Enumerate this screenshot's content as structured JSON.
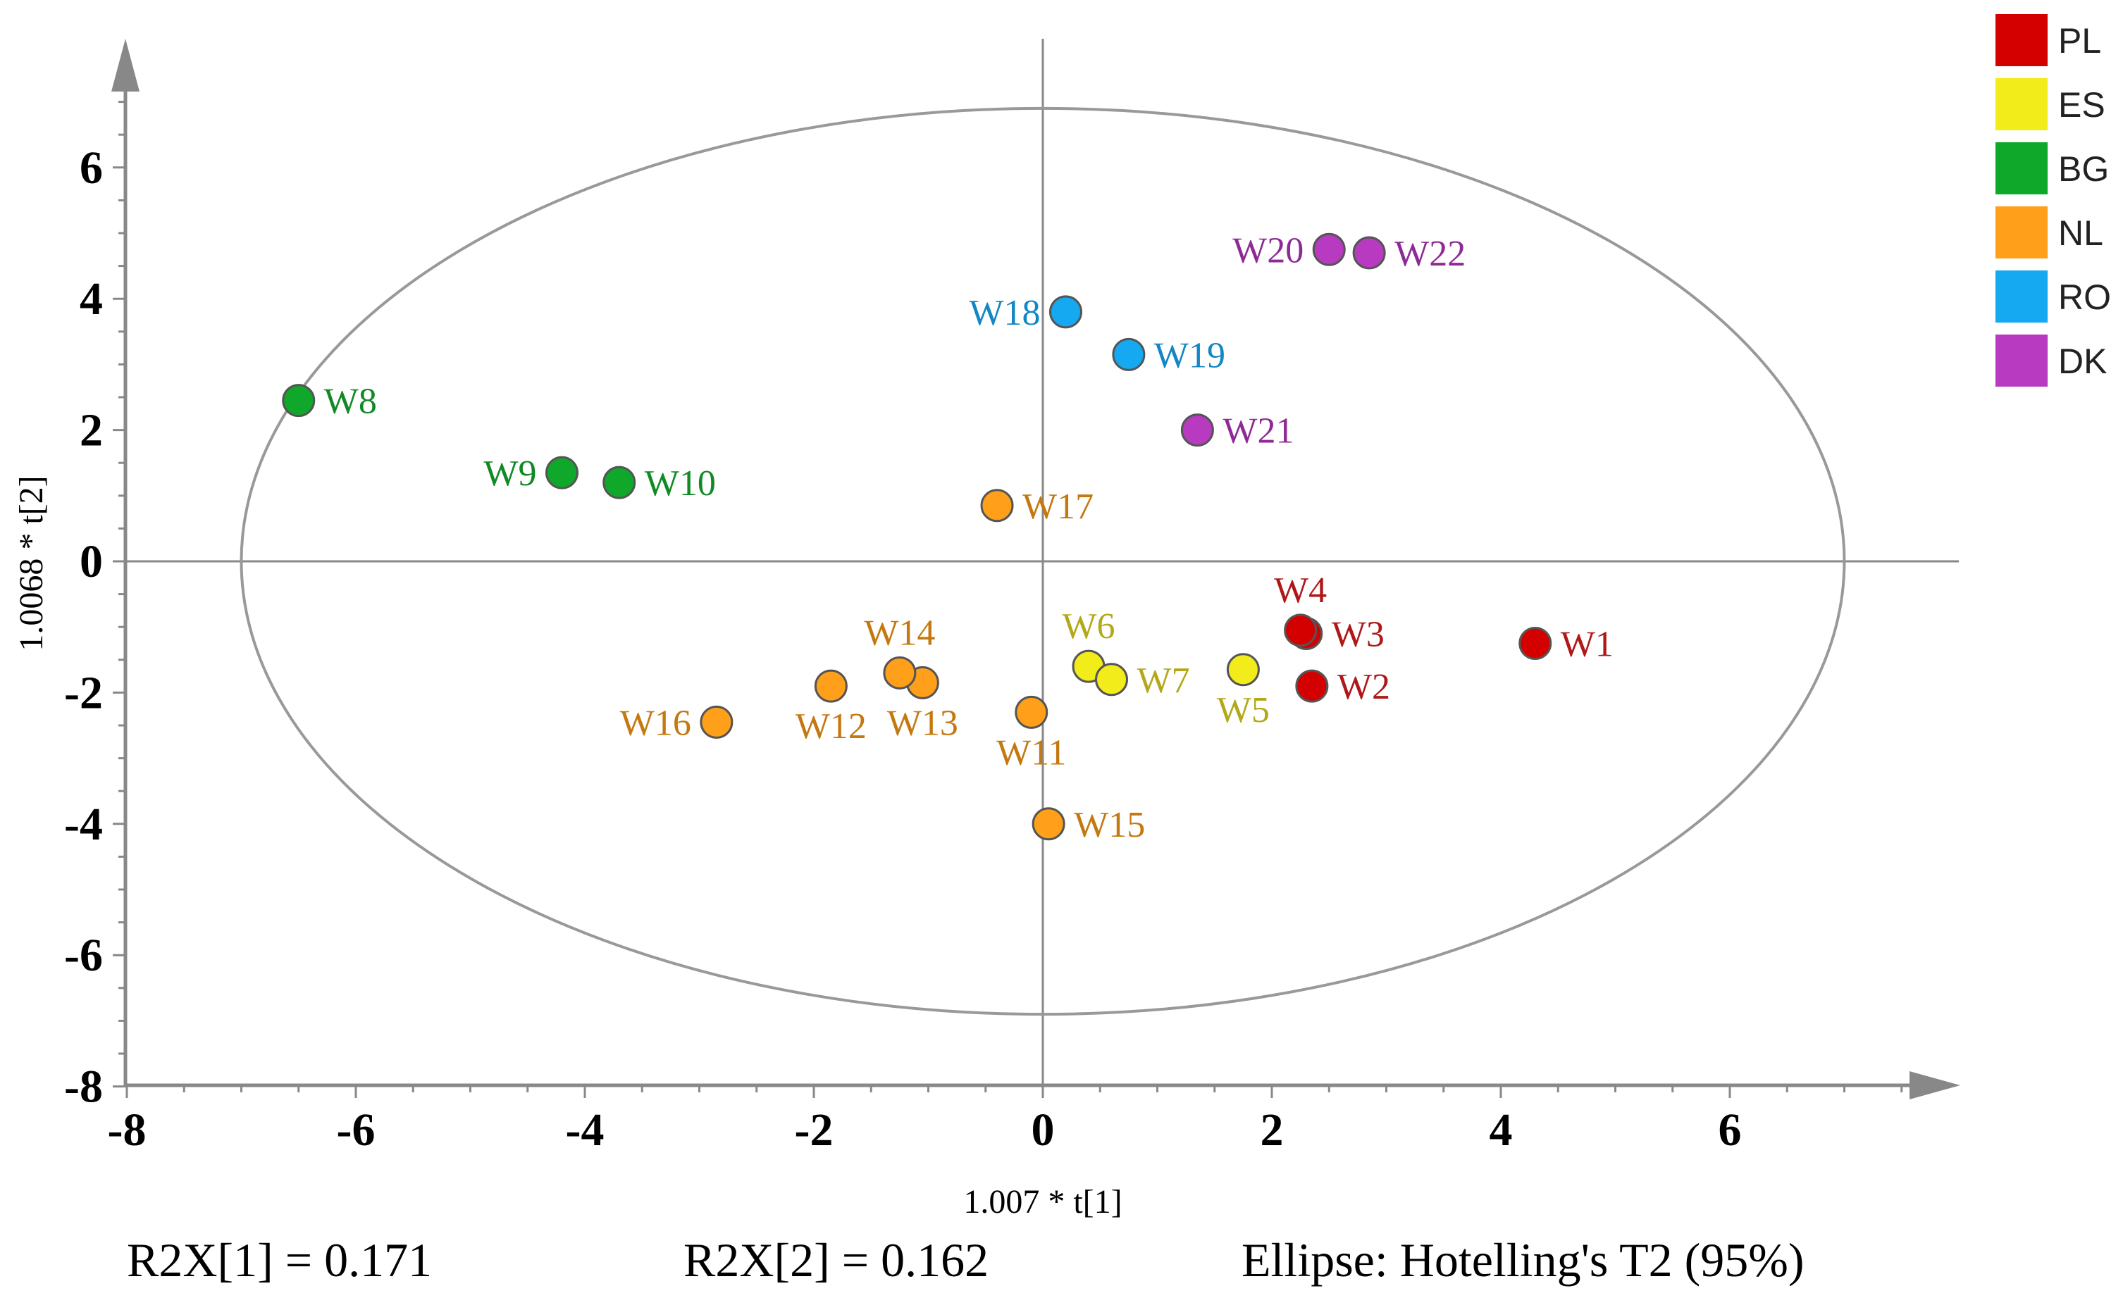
{
  "chart_data": {
    "type": "scatter",
    "title": "",
    "xlabel": "1.007 * t[1]",
    "ylabel": "1.0068 * t[2]",
    "xlim": [
      -8,
      8
    ],
    "ylim": [
      -8,
      8
    ],
    "x_ticks": [
      "-8",
      "-6",
      "-4",
      "-2",
      "0",
      "2",
      "4",
      "6"
    ],
    "y_ticks": [
      "6",
      "4",
      "2",
      "0",
      "-2",
      "-4",
      "-6",
      "-8"
    ],
    "ellipse": {
      "rx": 7.0,
      "ry": 6.9,
      "label": "Ellipse: Hotelling's T2 (95%)"
    },
    "stats": {
      "r2x1": "R2X[1] = 0.171",
      "r2x2": "R2X[2] = 0.162"
    },
    "legend": [
      {
        "name": "PL",
        "color": "#d40000"
      },
      {
        "name": "ES",
        "color": "#f2ec1a"
      },
      {
        "name": "BG",
        "color": "#0fa82a"
      },
      {
        "name": "NL",
        "color": "#ff9f1a"
      },
      {
        "name": "RO",
        "color": "#14a9f0"
      },
      {
        "name": "DK",
        "color": "#b83ac0"
      }
    ],
    "label_colors": {
      "PL": "#b01818",
      "ES": "#b3a81a",
      "BG": "#108a24",
      "NL": "#c47810",
      "RO": "#1386c4",
      "DK": "#8e2a96"
    },
    "points": [
      {
        "label": "W1",
        "group": "PL",
        "x": 4.3,
        "y": -1.25,
        "pos": "right"
      },
      {
        "label": "W2",
        "group": "PL",
        "x": 2.35,
        "y": -1.9,
        "pos": "right"
      },
      {
        "label": "W3",
        "group": "PL",
        "x": 2.3,
        "y": -1.1,
        "pos": "right"
      },
      {
        "label": "W4",
        "group": "PL",
        "x": 2.25,
        "y": -1.05,
        "pos": "top"
      },
      {
        "label": "W5",
        "group": "ES",
        "x": 1.75,
        "y": -1.65,
        "pos": "bottom"
      },
      {
        "label": "W6",
        "group": "ES",
        "x": 0.4,
        "y": -1.6,
        "pos": "top"
      },
      {
        "label": "W7",
        "group": "ES",
        "x": 0.6,
        "y": -1.8,
        "pos": "right"
      },
      {
        "label": "W8",
        "group": "BG",
        "x": -6.5,
        "y": 2.45,
        "pos": "right"
      },
      {
        "label": "W9",
        "group": "BG",
        "x": -4.2,
        "y": 1.35,
        "pos": "left"
      },
      {
        "label": "W10",
        "group": "BG",
        "x": -3.7,
        "y": 1.2,
        "pos": "right"
      },
      {
        "label": "W11",
        "group": "NL",
        "x": -0.1,
        "y": -2.3,
        "pos": "bottom"
      },
      {
        "label": "W12",
        "group": "NL",
        "x": -1.85,
        "y": -1.9,
        "pos": "bottom"
      },
      {
        "label": "W13",
        "group": "NL",
        "x": -1.05,
        "y": -1.85,
        "pos": "bottom"
      },
      {
        "label": "W14",
        "group": "NL",
        "x": -1.25,
        "y": -1.7,
        "pos": "top"
      },
      {
        "label": "W15",
        "group": "NL",
        "x": 0.05,
        "y": -4.0,
        "pos": "right"
      },
      {
        "label": "W16",
        "group": "NL",
        "x": -2.85,
        "y": -2.45,
        "pos": "left"
      },
      {
        "label": "W17",
        "group": "NL",
        "x": -0.4,
        "y": 0.85,
        "pos": "right"
      },
      {
        "label": "W18",
        "group": "RO",
        "x": 0.2,
        "y": 3.8,
        "pos": "left"
      },
      {
        "label": "W19",
        "group": "RO",
        "x": 0.75,
        "y": 3.15,
        "pos": "right"
      },
      {
        "label": "W20",
        "group": "DK",
        "x": 2.5,
        "y": 4.75,
        "pos": "left"
      },
      {
        "label": "W21",
        "group": "DK",
        "x": 1.35,
        "y": 2.0,
        "pos": "right"
      },
      {
        "label": "W22",
        "group": "DK",
        "x": 2.85,
        "y": 4.7,
        "pos": "right"
      }
    ]
  }
}
